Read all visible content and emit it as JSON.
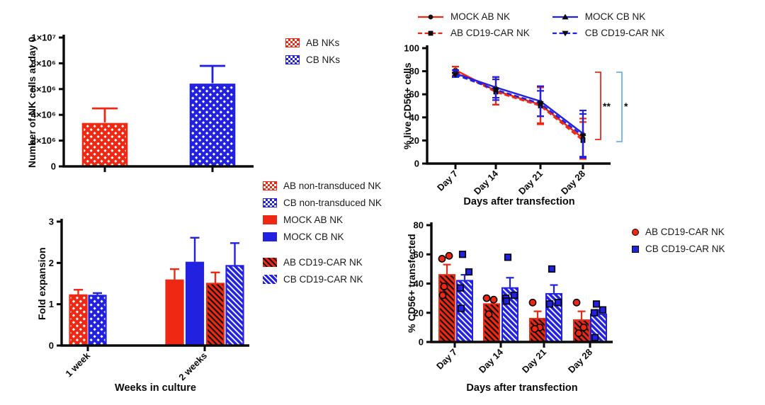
{
  "figure": {
    "background": "#ffffff"
  },
  "colors": {
    "red": "#ee2812",
    "blue": "#2121df",
    "light_blue": "#6cb0ee",
    "axis_black": "#0a0a0a"
  },
  "chart_data": [
    {
      "id": "nk_cells_day0",
      "type": "bar",
      "ylabel": "Number of NK cells at day 0",
      "xlabel": "",
      "ylim": [
        0,
        10000000
      ],
      "yticks": {
        "values": [
          0,
          2000000,
          4000000,
          6000000,
          8000000,
          10000000
        ],
        "labels": [
          "0",
          "2×10⁶",
          "4×10⁶",
          "6×10⁶",
          "8×10⁶",
          "1×10⁷"
        ]
      },
      "grid": false,
      "categories": [
        "AB NKs",
        "CB NKs"
      ],
      "values": [
        3300000,
        6350000
      ],
      "errors_plus": [
        1200000,
        1450000
      ],
      "bar_styles": [
        "checker-red",
        "checker-blue"
      ],
      "legend": [
        {
          "label": "AB NKs",
          "style": "checker-red"
        },
        {
          "label": "CB NKs",
          "style": "checker-blue"
        }
      ],
      "legend_position": "right"
    },
    {
      "id": "live_cd56_cells",
      "type": "line",
      "ylabel": "% live CD56+ cells",
      "xlabel": "Days after transfection",
      "ylim": [
        0,
        100
      ],
      "yticks": {
        "values": [
          0,
          20,
          40,
          60,
          80,
          100
        ],
        "labels": [
          "0",
          "20",
          "40",
          "60",
          "80",
          "100"
        ]
      },
      "grid": false,
      "categories": [
        "Day 7",
        "Day 14",
        "Day 21",
        "Day 28"
      ],
      "series": [
        {
          "name": "MOCK AB NK",
          "color": "red",
          "dash": "solid",
          "marker": "circle",
          "values": [
            81,
            63,
            51,
            22
          ],
          "errors": [
            3,
            12,
            16,
            17
          ]
        },
        {
          "name": "AB CD19-CAR NK",
          "color": "red",
          "dash": "dashed",
          "marker": "square",
          "values": [
            80,
            62,
            50,
            20
          ],
          "errors": [
            4,
            11,
            16,
            16
          ]
        },
        {
          "name": "MOCK CB NK",
          "color": "blue",
          "dash": "solid",
          "marker": "triangle-up",
          "values": [
            78,
            66,
            54,
            26
          ],
          "errors": [
            3,
            9,
            13,
            20
          ]
        },
        {
          "name": "CB CD19-CAR NK",
          "color": "blue",
          "dash": "dashed",
          "marker": "triangle-down",
          "values": [
            77,
            64,
            52,
            24
          ],
          "errors": [
            2,
            9,
            11,
            19
          ]
        }
      ],
      "significance": [
        {
          "label": "**",
          "color": "red"
        },
        {
          "label": "*",
          "color": "light_blue"
        }
      ],
      "legend_position": "top"
    },
    {
      "id": "fold_expansion",
      "type": "grouped-bar",
      "ylabel": "Fold expansion",
      "xlabel": "Weeks in culture",
      "ylim": [
        0,
        3
      ],
      "yticks": {
        "values": [
          0,
          1,
          2,
          3
        ],
        "labels": [
          "0",
          "1",
          "2",
          "3"
        ]
      },
      "grid": false,
      "categories": [
        "1 week",
        "2 weeks"
      ],
      "series": [
        {
          "name": "AB non-transduced NK",
          "style": "checker-red",
          "values": [
            1.22,
            null
          ],
          "errors_plus": [
            0.13,
            null
          ]
        },
        {
          "name": "CB non-transduced NK",
          "style": "checker-blue",
          "values": [
            1.21,
            null
          ],
          "errors_plus": [
            0.06,
            null
          ]
        },
        {
          "name": "MOCK AB NK",
          "style": "solid-red",
          "values": [
            null,
            1.58
          ],
          "errors_plus": [
            null,
            0.27
          ]
        },
        {
          "name": "MOCK CB NK",
          "style": "solid-blue",
          "values": [
            null,
            2.01
          ],
          "errors_plus": [
            null,
            0.6
          ]
        },
        {
          "name": "AB CD19-CAR NK",
          "style": "hatch-red",
          "values": [
            null,
            1.5
          ],
          "errors_plus": [
            null,
            0.27
          ]
        },
        {
          "name": "CB CD19-CAR NK",
          "style": "hatch-blue",
          "values": [
            null,
            1.93
          ],
          "errors_plus": [
            null,
            0.55
          ]
        }
      ],
      "legend_position": "right"
    },
    {
      "id": "cd56_transfected",
      "type": "grouped-bar-scatter",
      "ylabel": "% CD56+ transfected",
      "xlabel": "Days after transfection",
      "ylim": [
        0,
        80
      ],
      "yticks": {
        "values": [
          0,
          20,
          40,
          60,
          80
        ],
        "labels": [
          "0",
          "20",
          "40",
          "60",
          "80"
        ]
      },
      "grid": false,
      "categories": [
        "Day 7",
        "Day 14",
        "Day 21",
        "Day 28"
      ],
      "series": [
        {
          "name": "AB CD19-CAR NK",
          "style": "hatch-red",
          "marker": "circle-red",
          "values": [
            46,
            26,
            16,
            15
          ],
          "errors_plus": [
            7,
            3,
            5,
            6
          ],
          "points": [
            [
              57,
              59,
              38,
              32
            ],
            [
              30,
              29,
              19
            ],
            [
              27,
              10,
              9
            ],
            [
              27,
              10,
              6
            ]
          ]
        },
        {
          "name": "CB CD19-CAR NK",
          "style": "hatch-blue",
          "marker": "square-blue",
          "values": [
            42,
            37,
            33,
            19
          ],
          "errors_plus": [
            4,
            7,
            6,
            3
          ],
          "points": [
            [
              60,
              48,
              37,
              23
            ],
            [
              58,
              32,
              30,
              28
            ],
            [
              50,
              27,
              26
            ],
            [
              26,
              22,
              20,
              3
            ]
          ]
        }
      ],
      "legend_position": "right"
    }
  ]
}
